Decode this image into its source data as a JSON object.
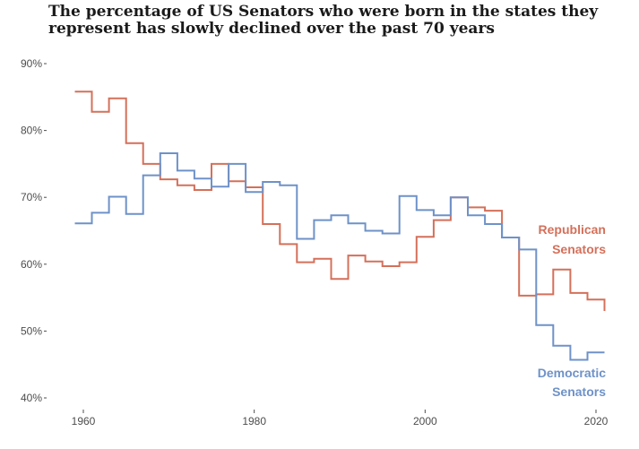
{
  "chart_data": {
    "type": "line",
    "step": true,
    "title": "The percentage of US Senators who were born in the states they represent has slowly declined over the past 70 years",
    "xlabel": "",
    "ylabel": "",
    "xlim": [
      1958,
      2022
    ],
    "ylim": [
      38,
      92
    ],
    "x_ticks": [
      "1960",
      "1980",
      "2000",
      "2020"
    ],
    "y_ticks": [
      "90%",
      "80%",
      "70%",
      "60%",
      "50%",
      "40%"
    ],
    "grid": false,
    "series": [
      {
        "name": "Republican Senators",
        "color": "#d4705a",
        "x": [
          1959,
          1961,
          1963,
          1965,
          1967,
          1969,
          1971,
          1973,
          1975,
          1977,
          1979,
          1981,
          1983,
          1985,
          1987,
          1989,
          1991,
          1993,
          1995,
          1997,
          1999,
          2001,
          2003,
          2005,
          2007,
          2009,
          2011,
          2013,
          2015,
          2017,
          2019,
          2021
        ],
        "values": [
          85.8,
          82.8,
          84.8,
          78.1,
          75.0,
          72.7,
          71.8,
          71.1,
          75.0,
          72.4,
          71.5,
          66.0,
          63.0,
          60.3,
          60.8,
          57.8,
          61.3,
          60.4,
          59.7,
          60.3,
          64.1,
          66.6,
          70.0,
          68.5,
          68.0,
          64.0,
          55.3,
          55.5,
          59.2,
          55.7,
          54.7,
          53.0
        ]
      },
      {
        "name": "Democratic Senators",
        "color": "#6e92c8",
        "x": [
          1959,
          1961,
          1963,
          1965,
          1967,
          1969,
          1971,
          1973,
          1975,
          1977,
          1979,
          1981,
          1983,
          1985,
          1987,
          1989,
          1991,
          1993,
          1995,
          1997,
          1999,
          2001,
          2003,
          2005,
          2007,
          2009,
          2011,
          2013,
          2015,
          2017,
          2019,
          2021
        ],
        "values": [
          66.1,
          67.7,
          70.1,
          67.5,
          73.3,
          76.6,
          74.0,
          72.8,
          71.6,
          75.0,
          70.8,
          72.3,
          71.8,
          63.8,
          66.6,
          67.3,
          66.1,
          65.0,
          64.6,
          70.2,
          68.1,
          67.3,
          70.0,
          67.3,
          66.0,
          64.0,
          62.2,
          50.9,
          47.8,
          45.7,
          46.8,
          46.8
        ]
      }
    ],
    "labels": {
      "republican_line1": "Republican",
      "republican_line2": "Senators",
      "democratic_line1": "Democratic",
      "democratic_line2": "Senators"
    }
  }
}
